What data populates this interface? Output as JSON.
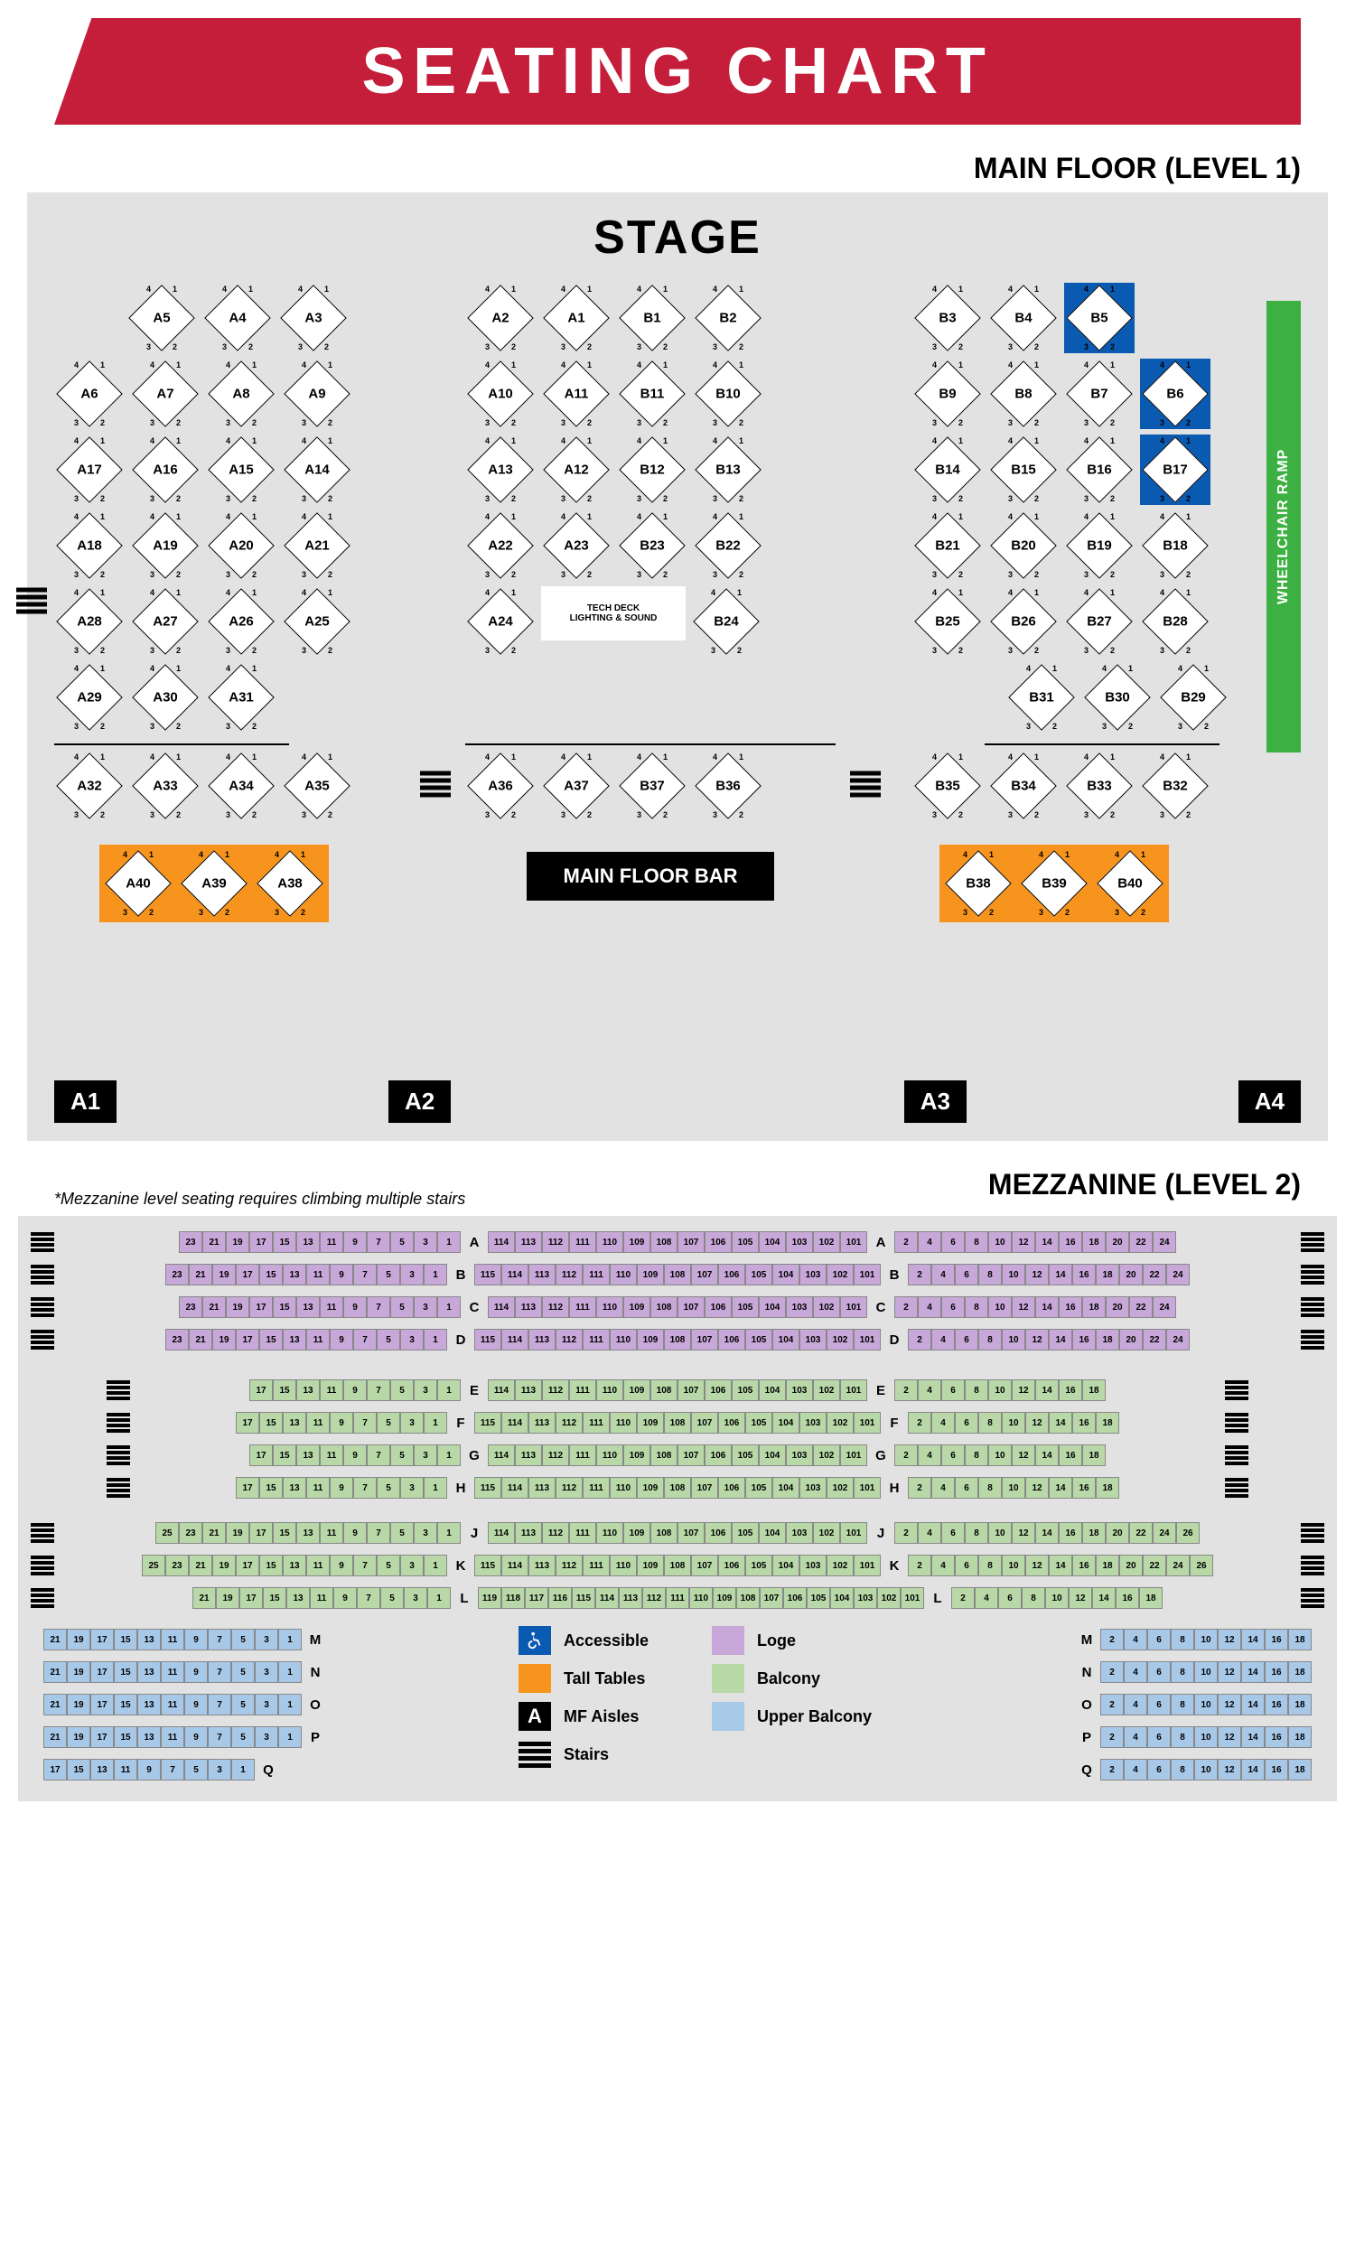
{
  "header": {
    "title": "SEATING CHART"
  },
  "main_floor": {
    "section_title": "MAIN FLOOR (LEVEL 1)",
    "stage_label": "STAGE",
    "tech_deck": {
      "line1": "TECH DECK",
      "line2": "LIGHTING & SOUND"
    },
    "main_floor_bar": "MAIN FLOOR BAR",
    "wheelchair_ramp": "WHEELCHAIR RAMP",
    "corners": {
      "tl": "4",
      "tr": "1",
      "bl": "3",
      "br": "2"
    },
    "aisles": [
      "A1",
      "A2",
      "A3",
      "A4"
    ],
    "columns": {
      "left": {
        "rows": [
          {
            "indent": 1,
            "tables": [
              "A5",
              "A4",
              "A3"
            ]
          },
          {
            "tables": [
              "A6",
              "A7",
              "A8",
              "A9"
            ]
          },
          {
            "tables": [
              "A17",
              "A16",
              "A15",
              "A14"
            ]
          },
          {
            "tables": [
              "A18",
              "A19",
              "A20",
              "A21"
            ]
          },
          {
            "tables": [
              "A28",
              "A27",
              "A26",
              "A25"
            ]
          },
          {
            "tables": [
              "A29",
              "A30",
              "A31"
            ]
          }
        ],
        "after_sep": [
          {
            "tables": [
              "A32",
              "A33",
              "A34",
              "A35"
            ],
            "left_stairs": true
          }
        ],
        "tall_tables": [
          "A40",
          "A39",
          "A38"
        ]
      },
      "center": {
        "rows": [
          {
            "tables": [
              "A2",
              "A1",
              "B1",
              "B2"
            ]
          },
          {
            "tables": [
              "A10",
              "A11",
              "B11",
              "B10"
            ]
          },
          {
            "tables": [
              "A13",
              "A12",
              "B12",
              "B13"
            ]
          },
          {
            "tables": [
              "A22",
              "A23",
              "B23",
              "B22"
            ]
          }
        ],
        "tech_row": {
          "left": "A24",
          "right": "B24"
        },
        "after_sep": [
          {
            "tables": [
              "A36",
              "A37",
              "B37",
              "B36"
            ],
            "both_stairs": true
          }
        ]
      },
      "right": {
        "rows": [
          {
            "tables": [
              "B3",
              "B4",
              "B5"
            ],
            "accessible_idx": [
              2
            ]
          },
          {
            "tables": [
              "B9",
              "B8",
              "B7",
              "B6"
            ],
            "accessible_idx": [
              3
            ]
          },
          {
            "tables": [
              "B14",
              "B15",
              "B16",
              "B17"
            ],
            "accessible_idx": [
              3
            ]
          },
          {
            "tables": [
              "B21",
              "B20",
              "B19",
              "B18"
            ]
          },
          {
            "tables": [
              "B25",
              "B26",
              "B27",
              "B28"
            ]
          },
          {
            "indent_right": 1,
            "tables": [
              "B31",
              "B30",
              "B29"
            ]
          }
        ],
        "after_sep": [
          {
            "tables": [
              "B35",
              "B34",
              "B33",
              "B32"
            ]
          }
        ],
        "tall_tables": [
          "B38",
          "B39",
          "B40"
        ]
      }
    }
  },
  "mezzanine": {
    "section_title": "MEZZANINE (LEVEL 2)",
    "note": "*Mezzanine level seating requires climbing multiple stairs",
    "loge_rows": [
      {
        "letter": "A",
        "left_odd": [
          23,
          21,
          19,
          17,
          15,
          13,
          11,
          9,
          7,
          5,
          3,
          1
        ],
        "center": [
          114,
          113,
          112,
          111,
          110,
          109,
          108,
          107,
          106,
          105,
          104,
          103,
          102,
          101
        ],
        "right_even": [
          2,
          4,
          6,
          8,
          10,
          12,
          14,
          16,
          18,
          20,
          22,
          24
        ]
      },
      {
        "letter": "B",
        "left_odd": [
          23,
          21,
          19,
          17,
          15,
          13,
          11,
          9,
          7,
          5,
          3,
          1
        ],
        "center": [
          115,
          114,
          113,
          112,
          111,
          110,
          109,
          108,
          107,
          106,
          105,
          104,
          103,
          102,
          101
        ],
        "right_even": [
          2,
          4,
          6,
          8,
          10,
          12,
          14,
          16,
          18,
          20,
          22,
          24
        ]
      },
      {
        "letter": "C",
        "left_odd": [
          23,
          21,
          19,
          17,
          15,
          13,
          11,
          9,
          7,
          5,
          3,
          1
        ],
        "center": [
          114,
          113,
          112,
          111,
          110,
          109,
          108,
          107,
          106,
          105,
          104,
          103,
          102,
          101
        ],
        "right_even": [
          2,
          4,
          6,
          8,
          10,
          12,
          14,
          16,
          18,
          20,
          22,
          24
        ]
      },
      {
        "letter": "D",
        "left_odd": [
          23,
          21,
          19,
          17,
          15,
          13,
          11,
          9,
          7,
          5,
          3,
          1
        ],
        "center": [
          115,
          114,
          113,
          112,
          111,
          110,
          109,
          108,
          107,
          106,
          105,
          104,
          103,
          102,
          101
        ],
        "right_even": [
          2,
          4,
          6,
          8,
          10,
          12,
          14,
          16,
          18,
          20,
          22,
          24
        ]
      }
    ],
    "balcony_rows": [
      {
        "letter": "E",
        "left_odd": [
          17,
          15,
          13,
          11,
          9,
          7,
          5,
          3,
          1
        ],
        "center": [
          114,
          113,
          112,
          111,
          110,
          109,
          108,
          107,
          106,
          105,
          104,
          103,
          102,
          101
        ],
        "right_even": [
          2,
          4,
          6,
          8,
          10,
          12,
          14,
          16,
          18
        ]
      },
      {
        "letter": "F",
        "left_odd": [
          17,
          15,
          13,
          11,
          9,
          7,
          5,
          3,
          1
        ],
        "center": [
          115,
          114,
          113,
          112,
          111,
          110,
          109,
          108,
          107,
          106,
          105,
          104,
          103,
          102,
          101
        ],
        "right_even": [
          2,
          4,
          6,
          8,
          10,
          12,
          14,
          16,
          18
        ]
      },
      {
        "letter": "G",
        "left_odd": [
          17,
          15,
          13,
          11,
          9,
          7,
          5,
          3,
          1
        ],
        "center": [
          114,
          113,
          112,
          111,
          110,
          109,
          108,
          107,
          106,
          105,
          104,
          103,
          102,
          101
        ],
        "right_even": [
          2,
          4,
          6,
          8,
          10,
          12,
          14,
          16,
          18
        ]
      },
      {
        "letter": "H",
        "left_odd": [
          17,
          15,
          13,
          11,
          9,
          7,
          5,
          3,
          1
        ],
        "center": [
          115,
          114,
          113,
          112,
          111,
          110,
          109,
          108,
          107,
          106,
          105,
          104,
          103,
          102,
          101
        ],
        "right_even": [
          2,
          4,
          6,
          8,
          10,
          12,
          14,
          16,
          18
        ]
      },
      {
        "letter": "J",
        "left_odd": [
          25,
          23,
          21,
          19,
          17,
          15,
          13,
          11,
          9,
          7,
          5,
          3,
          1
        ],
        "center": [
          114,
          113,
          112,
          111,
          110,
          109,
          108,
          107,
          106,
          105,
          104,
          103,
          102,
          101
        ],
        "right_even": [
          2,
          4,
          6,
          8,
          10,
          12,
          14,
          16,
          18,
          20,
          22,
          24,
          26
        ]
      },
      {
        "letter": "K",
        "left_odd": [
          25,
          23,
          21,
          19,
          17,
          15,
          13,
          11,
          9,
          7,
          5,
          3,
          1
        ],
        "center": [
          115,
          114,
          113,
          112,
          111,
          110,
          109,
          108,
          107,
          106,
          105,
          104,
          103,
          102,
          101
        ],
        "right_even": [
          2,
          4,
          6,
          8,
          10,
          12,
          14,
          16,
          18,
          20,
          22,
          24,
          26
        ]
      },
      {
        "letter": "L",
        "left_odd": [
          21,
          19,
          17,
          15,
          13,
          11,
          9,
          7,
          5,
          3,
          1
        ],
        "center": [
          119,
          118,
          117,
          116,
          115,
          114,
          113,
          112,
          111,
          110,
          109,
          108,
          107,
          106,
          105,
          104,
          103,
          102,
          101
        ],
        "right_even": [
          2,
          4,
          6,
          8,
          10,
          12,
          14,
          16,
          18
        ]
      }
    ],
    "upper_rows": [
      {
        "letter": "M",
        "left_odd": [
          21,
          19,
          17,
          15,
          13,
          11,
          9,
          7,
          5,
          3,
          1
        ],
        "right_even": [
          2,
          4,
          6,
          8,
          10,
          12,
          14,
          16,
          18
        ]
      },
      {
        "letter": "N",
        "left_odd": [
          21,
          19,
          17,
          15,
          13,
          11,
          9,
          7,
          5,
          3,
          1
        ],
        "right_even": [
          2,
          4,
          6,
          8,
          10,
          12,
          14,
          16,
          18
        ]
      },
      {
        "letter": "O",
        "left_odd": [
          21,
          19,
          17,
          15,
          13,
          11,
          9,
          7,
          5,
          3,
          1
        ],
        "right_even": [
          2,
          4,
          6,
          8,
          10,
          12,
          14,
          16,
          18
        ]
      },
      {
        "letter": "P",
        "left_odd": [
          21,
          19,
          17,
          15,
          13,
          11,
          9,
          7,
          5,
          3,
          1
        ],
        "right_even": [
          2,
          4,
          6,
          8,
          10,
          12,
          14,
          16,
          18
        ]
      },
      {
        "letter": "Q",
        "left_odd": [
          17,
          15,
          13,
          11,
          9,
          7,
          5,
          3,
          1
        ],
        "right_even": [
          2,
          4,
          6,
          8,
          10,
          12,
          14,
          16,
          18
        ]
      }
    ]
  },
  "legend": {
    "accessible": "Accessible",
    "loge": "Loge",
    "tall_tables": "Tall Tables",
    "balcony": "Balcony",
    "mf_aisles": "MF Aisles",
    "upper_balcony": "Upper Balcony",
    "stairs": "Stairs",
    "mf_aisles_glyph": "A"
  },
  "colors": {
    "header_bg": "#c41e3a",
    "floor_bg": "#e2e2e2",
    "accessible_bg": "#0b5ab2",
    "tall_tables_bg": "#f7941d",
    "ramp_bg": "#3cb043",
    "loge_bg": "#c8a8d8",
    "balcony_bg": "#b8d8a8",
    "upper_bg": "#a8c8e8"
  }
}
